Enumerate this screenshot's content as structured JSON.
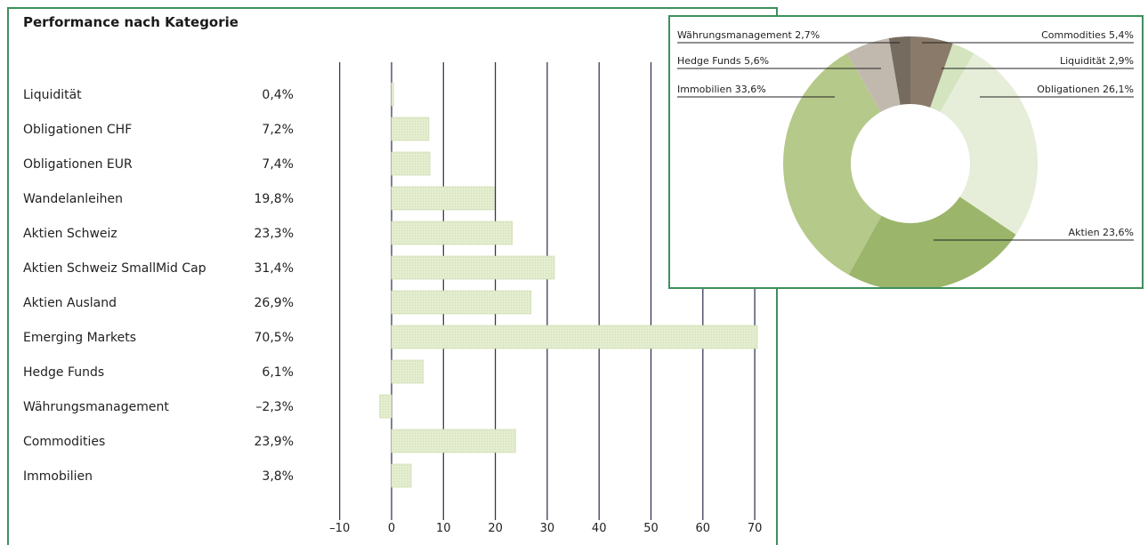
{
  "title": "Performance nach Kategorie",
  "colors": {
    "border": "#3f8f5c",
    "bar_fill": "#e4edcf",
    "bar_stroke": "#c9d9a8",
    "gridline": "#2a2a4a",
    "pie": [
      "#8a7a6a",
      "#d3e4bf",
      "#e6edd8",
      "#9bb56a",
      "#b5c98a",
      "#c2b9ae",
      "#756b5f"
    ]
  },
  "chart_data": [
    {
      "type": "bar",
      "orientation": "horizontal",
      "title": "Performance nach Kategorie",
      "categories": [
        "Liquidität",
        "Obligationen CHF",
        "Obligationen EUR",
        "Wandelanleihen",
        "Aktien Schweiz",
        "Aktien Schweiz SmallMid Cap",
        "Aktien Ausland",
        "Emerging Markets",
        "Hedge Funds",
        "Währungsmanagement",
        "Commodities",
        "Immobilien"
      ],
      "values": [
        0.4,
        7.2,
        7.4,
        19.8,
        23.3,
        31.4,
        26.9,
        70.5,
        6.1,
        -2.3,
        23.9,
        3.8
      ],
      "value_labels": [
        "0,4%",
        "7,2%",
        "7,4%",
        "19,8%",
        "23,3%",
        "31,4%",
        "26,9%",
        "70,5%",
        "6,1%",
        "–2,3%",
        "23,9%",
        "3,8%"
      ],
      "xlim": [
        -10,
        70
      ],
      "xticks": [
        -10,
        0,
        10,
        20,
        30,
        40,
        50,
        60,
        70
      ],
      "xtick_labels": [
        "–10",
        "0",
        "10",
        "20",
        "30",
        "40",
        "50",
        "60",
        "70"
      ],
      "grid": true
    },
    {
      "type": "pie",
      "donut": true,
      "categories": [
        "Commodities",
        "Liquidität",
        "Obligationen",
        "Aktien",
        "Immobilien",
        "Hedge Funds",
        "Währungsmanagement"
      ],
      "values": [
        5.4,
        2.9,
        26.1,
        23.6,
        33.6,
        5.6,
        2.7
      ],
      "labels": [
        "Commodities 5,4%",
        "Liquidität 2,9%",
        "Obligationen 26,1%",
        "Aktien 23,6%",
        "Immobilien 33,6%",
        "Hedge Funds 5,6%",
        "Währungsmanagement 2,7%"
      ]
    }
  ]
}
